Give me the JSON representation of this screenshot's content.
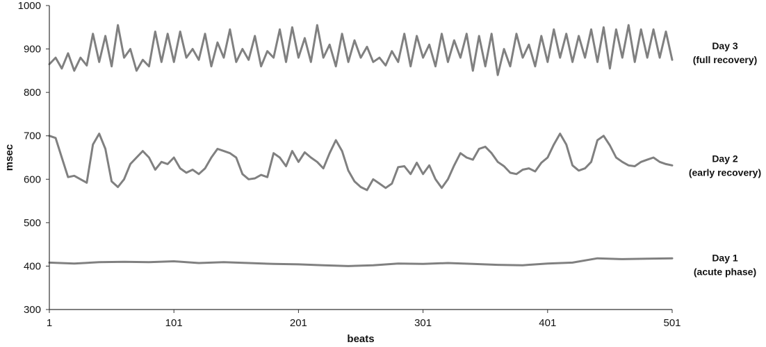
{
  "chart_data": {
    "type": "line",
    "title": "",
    "xlabel": "beats",
    "ylabel": "msec",
    "xlim": [
      1,
      501
    ],
    "ylim": [
      300,
      1000
    ],
    "x_ticks": [
      1,
      101,
      201,
      301,
      401,
      501
    ],
    "y_ticks": [
      300,
      400,
      500,
      600,
      700,
      800,
      900,
      1000
    ],
    "grid": false,
    "legend": "none",
    "line_color": "#808080",
    "series": [
      {
        "name": "",
        "label_lines": [
          "Day 3",
          "(full recovery)"
        ],
        "x": [
          1,
          6,
          11,
          16,
          21,
          26,
          31,
          36,
          41,
          46,
          51,
          56,
          61,
          66,
          71,
          76,
          81,
          86,
          91,
          96,
          101,
          106,
          111,
          116,
          121,
          126,
          131,
          136,
          141,
          146,
          151,
          156,
          161,
          166,
          171,
          176,
          181,
          186,
          191,
          196,
          201,
          206,
          211,
          216,
          221,
          226,
          231,
          236,
          241,
          246,
          251,
          256,
          261,
          266,
          271,
          276,
          281,
          286,
          291,
          296,
          301,
          306,
          311,
          316,
          321,
          326,
          331,
          336,
          341,
          346,
          351,
          356,
          361,
          366,
          371,
          376,
          381,
          386,
          391,
          396,
          401,
          406,
          411,
          416,
          421,
          426,
          431,
          436,
          441,
          446,
          451,
          456,
          461,
          466,
          471,
          476,
          481,
          486,
          491,
          496,
          501
        ],
        "values": [
          865,
          880,
          855,
          890,
          850,
          880,
          862,
          935,
          870,
          930,
          860,
          955,
          880,
          900,
          850,
          875,
          860,
          940,
          870,
          935,
          870,
          940,
          880,
          900,
          875,
          935,
          860,
          915,
          880,
          945,
          870,
          900,
          875,
          930,
          860,
          895,
          880,
          945,
          870,
          950,
          880,
          925,
          870,
          955,
          880,
          910,
          860,
          935,
          870,
          920,
          880,
          905,
          870,
          880,
          862,
          895,
          870,
          935,
          860,
          930,
          880,
          910,
          860,
          935,
          870,
          920,
          880,
          935,
          850,
          930,
          860,
          935,
          840,
          900,
          860,
          935,
          880,
          910,
          860,
          930,
          870,
          945,
          880,
          935,
          870,
          930,
          880,
          945,
          870,
          950,
          855,
          945,
          880,
          955,
          870,
          945,
          880,
          945,
          880,
          940,
          875
        ]
      },
      {
        "name": "",
        "label_lines": [
          "Day 2",
          "(early recovery)"
        ],
        "x": [
          1,
          6,
          11,
          16,
          21,
          26,
          31,
          36,
          41,
          46,
          51,
          56,
          61,
          66,
          71,
          76,
          81,
          86,
          91,
          96,
          101,
          106,
          111,
          116,
          121,
          126,
          131,
          136,
          141,
          146,
          151,
          156,
          161,
          166,
          171,
          176,
          181,
          186,
          191,
          196,
          201,
          206,
          211,
          216,
          221,
          226,
          231,
          236,
          241,
          246,
          251,
          256,
          261,
          266,
          271,
          276,
          281,
          286,
          291,
          296,
          301,
          306,
          311,
          316,
          321,
          326,
          331,
          336,
          341,
          346,
          351,
          356,
          361,
          366,
          371,
          376,
          381,
          386,
          391,
          396,
          401,
          406,
          411,
          416,
          421,
          426,
          431,
          436,
          441,
          446,
          451,
          456,
          461,
          466,
          471,
          476,
          481,
          486,
          491,
          496,
          501
        ],
        "values": [
          700,
          695,
          650,
          605,
          608,
          600,
          592,
          680,
          705,
          670,
          595,
          582,
          600,
          635,
          650,
          665,
          650,
          622,
          640,
          635,
          650,
          625,
          615,
          622,
          612,
          625,
          650,
          670,
          665,
          660,
          650,
          612,
          600,
          602,
          610,
          605,
          660,
          650,
          630,
          665,
          640,
          662,
          650,
          640,
          625,
          660,
          690,
          665,
          620,
          595,
          582,
          575,
          600,
          590,
          580,
          590,
          628,
          630,
          612,
          638,
          612,
          632,
          600,
          580,
          600,
          632,
          660,
          650,
          645,
          670,
          675,
          660,
          640,
          630,
          615,
          612,
          622,
          625,
          618,
          638,
          650,
          680,
          705,
          680,
          632,
          620,
          625,
          640,
          690,
          700,
          678,
          650,
          640,
          632,
          630,
          640,
          645,
          650,
          640,
          635,
          632
        ]
      },
      {
        "name": "",
        "label_lines": [
          "Day 1",
          "(acute phase)"
        ],
        "x": [
          1,
          21,
          41,
          61,
          81,
          101,
          121,
          141,
          161,
          181,
          201,
          221,
          241,
          261,
          281,
          301,
          321,
          341,
          361,
          381,
          401,
          421,
          441,
          461,
          481,
          501
        ],
        "values": [
          408,
          406,
          409,
          410,
          409,
          411,
          407,
          409,
          407,
          405,
          404,
          402,
          400,
          402,
          406,
          405,
          407,
          405,
          403,
          402,
          406,
          408,
          418,
          416,
          417,
          418
        ]
      }
    ]
  }
}
